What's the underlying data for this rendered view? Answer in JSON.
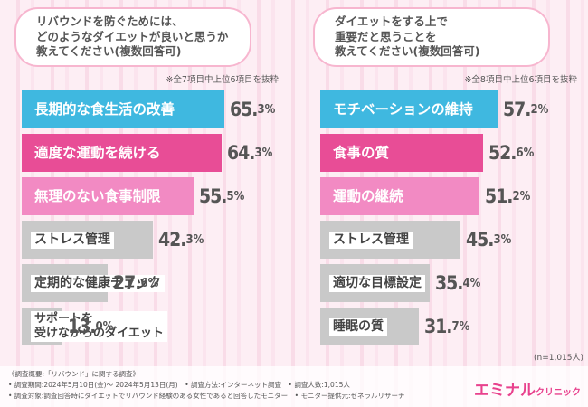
{
  "colors": {
    "teal": "#3fb8e0",
    "magenta": "#e84d96",
    "pink": "#f28ac3",
    "gray": "#c9c9c9",
    "bg": "#fdeef4",
    "brand": "#e8418d"
  },
  "left": {
    "question": [
      "リバウンドを防ぐためには、",
      "どのようなダイエットが良いと思うか",
      "教えてください(複数回答可)"
    ],
    "note": "※全7項目中上位6項目を抜粋"
  },
  "right": {
    "question": [
      "ダイエットをする上で",
      "重要だと思うことを",
      "教えてください(複数回答可)"
    ],
    "note": "※全8項目中上位6項目を抜粋"
  },
  "chart_data": [
    {
      "type": "bar",
      "orientation": "horizontal",
      "title": "リバウンドを防ぐためには、どのようなダイエットが良いと思うか教えてください(複数回答可)",
      "categories": [
        "長期的な食生活の改善",
        "適度な運動を続ける",
        "無理のない食事制限",
        "ストレス管理",
        "定期的な健康チェック",
        "サポートを受けながらのダイエット"
      ],
      "labels": [
        [
          "長期的な食生活の改善"
        ],
        [
          "適度な運動を続ける"
        ],
        [
          "無理のない食事制限"
        ],
        [
          "ストレス管理"
        ],
        [
          "定期的な健康チェック"
        ],
        [
          "サポートを",
          "受けながらのダイエット"
        ]
      ],
      "values": [
        65.3,
        64.3,
        55.5,
        42.3,
        27.6,
        13.0
      ],
      "value_labels": [
        [
          "65.",
          "3%"
        ],
        [
          "64.",
          "3%"
        ],
        [
          "55.",
          "5%"
        ],
        [
          "42.",
          "3%"
        ],
        [
          "27.",
          "6%"
        ],
        [
          "13.",
          "0%"
        ]
      ],
      "styles": [
        "teal",
        "magenta",
        "pink",
        "gray",
        "gray",
        "gray"
      ],
      "unit": "%"
    },
    {
      "type": "bar",
      "orientation": "horizontal",
      "title": "ダイエットをする上で重要だと思うことを教えてください(複数回答可)",
      "categories": [
        "モチベーションの維持",
        "食事の質",
        "運動の継続",
        "ストレス管理",
        "適切な目標設定",
        "睡眠の質"
      ],
      "labels": [
        [
          "モチベーションの維持"
        ],
        [
          "食事の質"
        ],
        [
          "運動の継続"
        ],
        [
          "ストレス管理"
        ],
        [
          "適切な目標設定"
        ],
        [
          "睡眠の質"
        ]
      ],
      "values": [
        57.2,
        52.6,
        51.2,
        45.3,
        35.4,
        31.7
      ],
      "value_labels": [
        [
          "57.",
          "2%"
        ],
        [
          "52.",
          "6%"
        ],
        [
          "51.",
          "2%"
        ],
        [
          "45.",
          "3%"
        ],
        [
          "35.",
          "4%"
        ],
        [
          "31.",
          "7%"
        ]
      ],
      "styles": [
        "teal",
        "magenta",
        "pink",
        "gray",
        "gray",
        "gray"
      ],
      "unit": "%"
    }
  ],
  "sample": "(n=1,015人)",
  "footer": {
    "line1": "《調査概要:「リバウンド」に関する調査》",
    "line2": "• 調査期間:2024年5月10日(金)～ 2024年5月13日(月)　• 調査方法:インターネット調査　• 調査人数:1,015人",
    "line3": "• 調査対象:調査回答時にダイエットでリバウンド経験のある女性であると回答したモニター　• モニター提供元:ゼネラルリサーチ"
  },
  "brand": {
    "main": "エミナル",
    "sub": "クリニック"
  }
}
